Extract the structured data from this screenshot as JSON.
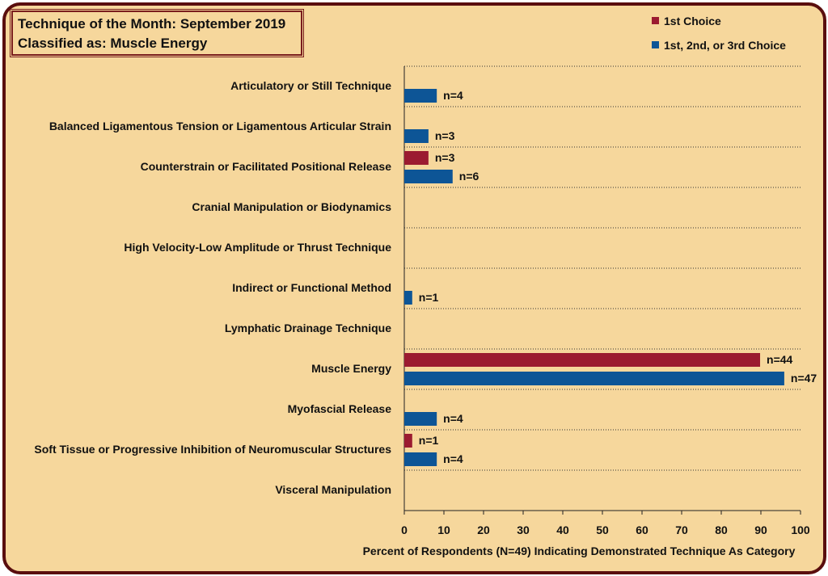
{
  "title": {
    "line1": "Technique of the Month: September 2019",
    "line2": "Classified as: Muscle Energy"
  },
  "colors": {
    "first_choice": "#9b1b30",
    "any_choice": "#0d5596",
    "frame": "#5a0e0e",
    "background": "#f6d79c"
  },
  "chart_data": {
    "type": "bar",
    "orientation": "horizontal",
    "xlabel": "Percent of Respondents (N=49) Indicating Demonstrated Technique As Category",
    "xlim": [
      0,
      100
    ],
    "xticks": [
      0,
      10,
      20,
      30,
      40,
      50,
      60,
      70,
      80,
      90,
      100
    ],
    "grid": "dotted horizontal separators",
    "legend_position": "top-right",
    "categories": [
      "Articulatory or Still Technique",
      "Balanced Ligamentous Tension or Ligamentous Articular Strain",
      "Counterstrain or Facilitated Positional Release",
      "Cranial Manipulation or Biodynamics",
      "High Velocity-Low Amplitude or Thrust Technique",
      "Indirect or Functional Method",
      "Lymphatic Drainage Technique",
      "Muscle Energy",
      "Myofascial Release",
      "Soft Tissue or Progressive Inhibition of Neuromuscular Structures",
      "Visceral Manipulation"
    ],
    "series": [
      {
        "name": "1st Choice",
        "values": [
          0,
          0,
          6.1,
          0,
          0,
          0,
          0,
          89.8,
          0,
          2.0,
          0
        ],
        "labels": [
          "",
          "",
          "n=3",
          "",
          "",
          "",
          "",
          "n=44",
          "",
          "n=1",
          ""
        ]
      },
      {
        "name": "1st, 2nd, or 3rd Choice",
        "values": [
          8.2,
          6.1,
          12.2,
          0,
          0,
          2.0,
          0,
          95.9,
          8.2,
          8.2,
          0
        ],
        "labels": [
          "n=4",
          "n=3",
          "n=6",
          "",
          "",
          "n=1",
          "",
          "n=47",
          "n=4",
          "n=4",
          ""
        ]
      }
    ]
  }
}
